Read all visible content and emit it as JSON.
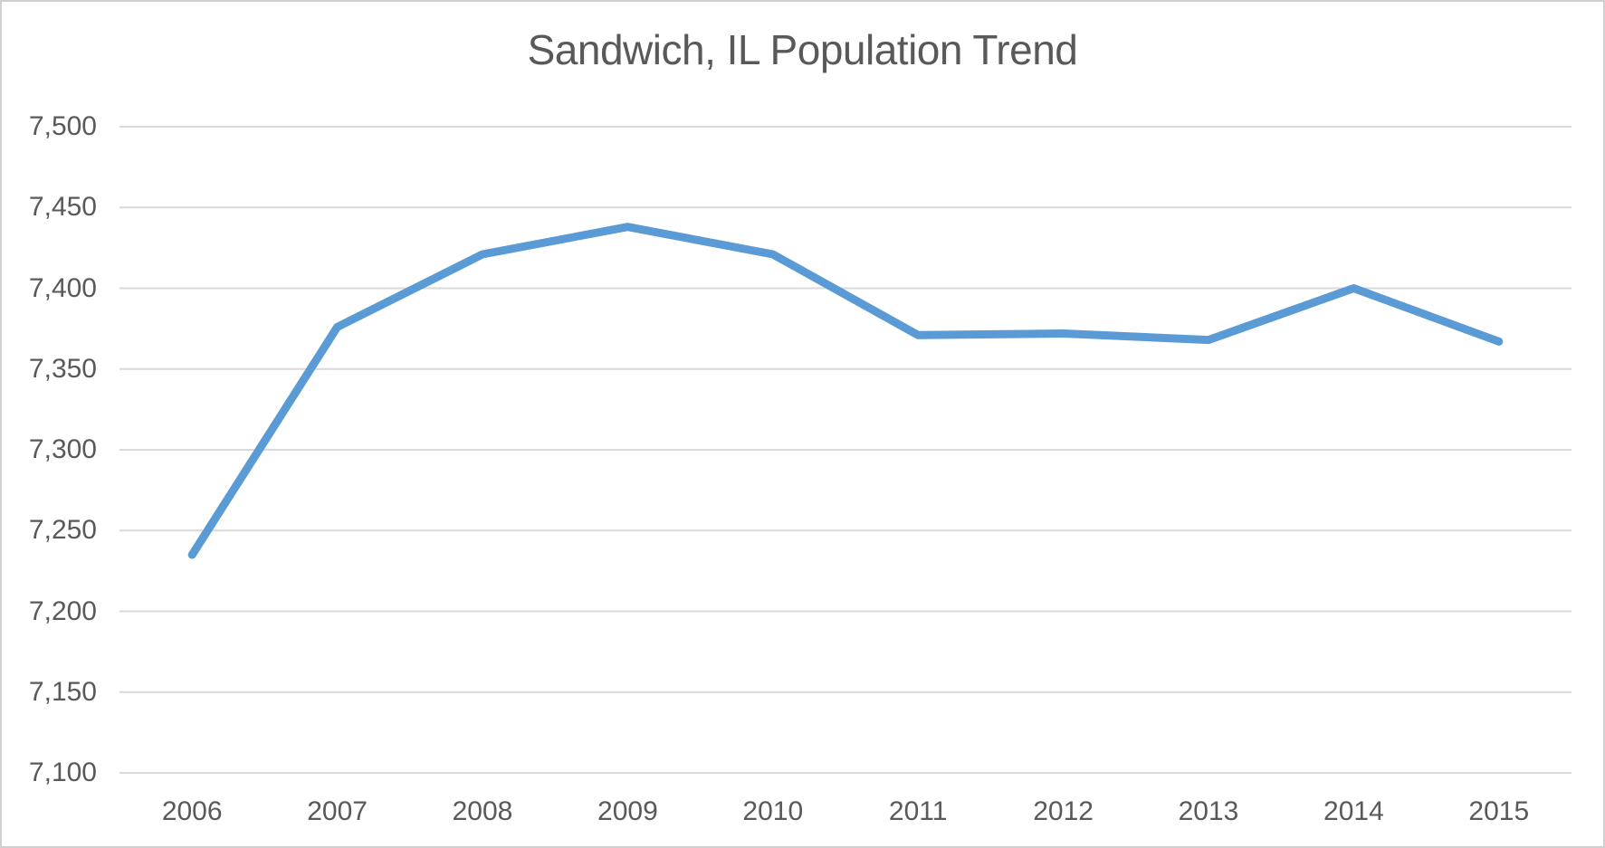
{
  "chart_data": {
    "type": "line",
    "title": "Sandwich, IL Population Trend",
    "categories": [
      "2006",
      "2007",
      "2008",
      "2009",
      "2010",
      "2011",
      "2012",
      "2013",
      "2014",
      "2015"
    ],
    "values": [
      7235,
      7376,
      7421,
      7438,
      7421,
      7371,
      7372,
      7368,
      7400,
      7367
    ],
    "xlabel": "",
    "ylabel": "",
    "ylim": [
      7100,
      7500
    ],
    "ytick_step": 50,
    "yticks": [
      {
        "value": 7500,
        "label": "7,500"
      },
      {
        "value": 7450,
        "label": "7,450"
      },
      {
        "value": 7400,
        "label": "7,400"
      },
      {
        "value": 7350,
        "label": "7,350"
      },
      {
        "value": 7300,
        "label": "7,300"
      },
      {
        "value": 7250,
        "label": "7,250"
      },
      {
        "value": 7200,
        "label": "7,200"
      },
      {
        "value": 7150,
        "label": "7,150"
      },
      {
        "value": 7100,
        "label": "7,100"
      }
    ],
    "grid": "horizontal",
    "legend": "none",
    "colors": {
      "line": "#5B9BD5",
      "gridline": "#D9D9D9",
      "text": "#595959",
      "background": "#FFFFFF",
      "border": "#D0D0D0"
    }
  }
}
